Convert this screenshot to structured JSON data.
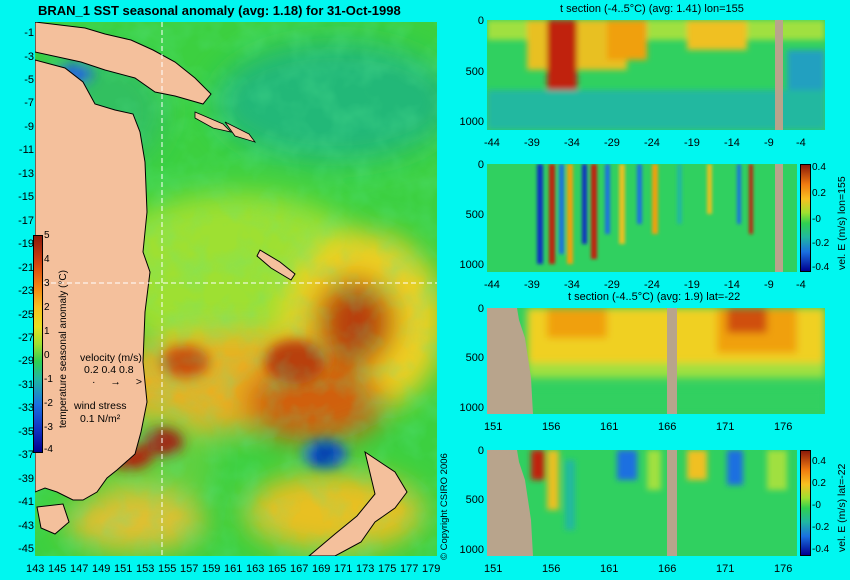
{
  "chart_data": [
    {
      "type": "heatmap",
      "title": "BRAN_1  SST seasonal anomaly (avg: 1.18) for 31-Oct-1998",
      "y_ticks": [
        "-1",
        "-3",
        "-5",
        "-7",
        "-9",
        "-11",
        "-13",
        "-15",
        "-17",
        "-19",
        "-21",
        "-23",
        "-25",
        "-27",
        "-29",
        "-31",
        "-33",
        "-35",
        "-37",
        "-39",
        "-41",
        "-43",
        "-45"
      ],
      "x_ticks": [
        "143",
        "145",
        "147",
        "149",
        "151",
        "153",
        "155",
        "157",
        "159",
        "161",
        "163",
        "165",
        "167",
        "169",
        "171",
        "173",
        "175",
        "177",
        "179"
      ],
      "colorbar": {
        "label": "temperature seasonal anomaly (°C)",
        "ticks": [
          "5",
          "4",
          "3",
          "2",
          "1",
          "0",
          "-1",
          "-2",
          "-3",
          "-4"
        ],
        "range": [
          -4,
          5
        ]
      },
      "legend_velocity": {
        "label": "velocity (m/s)",
        "values": "0.2 0.4 0.8"
      },
      "legend_wind": {
        "label": "wind stress",
        "value": "0.1 N/m²"
      },
      "section_lines": {
        "lon": 155,
        "lat": -22
      }
    },
    {
      "type": "heatmap",
      "title": "t section (-4..5°C) (avg: 1.41) lon=155",
      "x_ticks": [
        "-44",
        "-39",
        "-34",
        "-29",
        "-24",
        "-19",
        "-14",
        "-9",
        "-4"
      ],
      "y_ticks": [
        "0",
        "500",
        "1000"
      ]
    },
    {
      "type": "heatmap",
      "title": "",
      "x_ticks": [
        "-44",
        "-39",
        "-34",
        "-29",
        "-24",
        "-19",
        "-14",
        "-9",
        "-4"
      ],
      "y_ticks": [
        "0",
        "500",
        "1000"
      ],
      "colorbar": {
        "label": "vel. E (m/s) lon=155",
        "ticks": [
          "0.4",
          "0.2",
          "-0",
          "-0.2",
          "-0.4"
        ],
        "range": [
          -0.4,
          0.4
        ]
      }
    },
    {
      "type": "heatmap",
      "title": "t section (-4..5°C) (avg: 1.9) lat=-22",
      "x_ticks": [
        "151",
        "156",
        "161",
        "166",
        "171",
        "176"
      ],
      "y_ticks": [
        "0",
        "500",
        "1000"
      ]
    },
    {
      "type": "heatmap",
      "title": "",
      "x_ticks": [
        "151",
        "156",
        "161",
        "166",
        "171",
        "176"
      ],
      "y_ticks": [
        "0",
        "500",
        "1000"
      ],
      "colorbar": {
        "label": "vel. E (m/s) lat=-22",
        "ticks": [
          "0.4",
          "0.2",
          "-0",
          "-0.2",
          "-0.4"
        ],
        "range": [
          -0.4,
          0.4
        ]
      }
    }
  ],
  "copyright": "© Copyright CSIRO 2006",
  "colors": {
    "background": "#00f7f0",
    "land": "#f4c09c",
    "section_land": "#b8a48c"
  }
}
